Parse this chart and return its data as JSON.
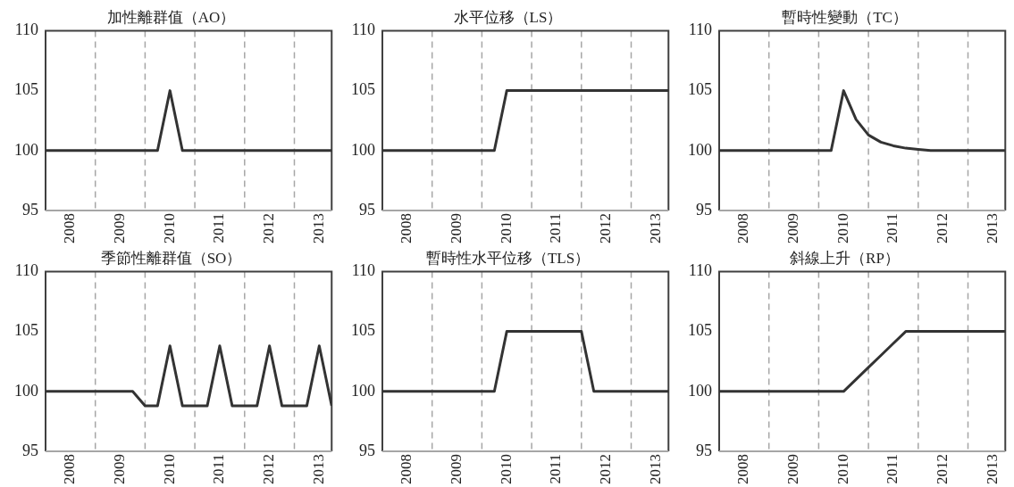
{
  "chart_data": [
    {
      "type": "line",
      "title": "加性離群值（AO）",
      "x": [
        2008,
        2008.25,
        2008.5,
        2008.75,
        2009,
        2009.25,
        2009.5,
        2009.75,
        2010,
        2010.25,
        2010.5,
        2010.75,
        2011,
        2011.25,
        2011.5,
        2011.75,
        2012,
        2012.25,
        2012.5,
        2012.75,
        2013,
        2013.25,
        2013.5,
        2013.75
      ],
      "xlim": [
        2008,
        2013.75
      ],
      "xticks": [
        {
          "value": 2008.5,
          "label": "2008"
        },
        {
          "value": 2009.5,
          "label": "2009"
        },
        {
          "value": 2010.5,
          "label": "2010"
        },
        {
          "value": 2011.5,
          "label": "2011"
        },
        {
          "value": 2012.5,
          "label": "2012"
        },
        {
          "value": 2013.5,
          "label": "2013"
        }
      ],
      "ylim": [
        95,
        110
      ],
      "yticks": [
        95,
        100,
        105,
        110
      ],
      "grid": false,
      "legend": false,
      "marker": "none",
      "line_style": "solid",
      "ref_lines": [
        {
          "axis": "x",
          "value": 2009,
          "color": "#a6a6a6",
          "line_style": "dashed"
        },
        {
          "axis": "x",
          "value": 2010,
          "color": "#a6a6a6",
          "line_style": "dashed"
        },
        {
          "axis": "x",
          "value": 2011,
          "color": "#a6a6a6",
          "line_style": "dashed"
        },
        {
          "axis": "x",
          "value": 2012,
          "color": "#a6a6a6",
          "line_style": "dashed"
        },
        {
          "axis": "x",
          "value": 2013,
          "color": "#a6a6a6",
          "line_style": "dashed"
        }
      ],
      "series": [
        {
          "color": "#333333",
          "values": [
            100,
            100,
            100,
            100,
            100,
            100,
            100,
            100,
            100,
            100,
            105,
            100,
            100,
            100,
            100,
            100,
            100,
            100,
            100,
            100,
            100,
            100,
            100,
            100
          ]
        }
      ]
    },
    {
      "type": "line",
      "title": "水平位移（LS）",
      "x": [
        2008,
        2008.25,
        2008.5,
        2008.75,
        2009,
        2009.25,
        2009.5,
        2009.75,
        2010,
        2010.25,
        2010.5,
        2010.75,
        2011,
        2011.25,
        2011.5,
        2011.75,
        2012,
        2012.25,
        2012.5,
        2012.75,
        2013,
        2013.25,
        2013.5,
        2013.75
      ],
      "xlim": [
        2008,
        2013.75
      ],
      "xticks": [
        {
          "value": 2008.5,
          "label": "2008"
        },
        {
          "value": 2009.5,
          "label": "2009"
        },
        {
          "value": 2010.5,
          "label": "2010"
        },
        {
          "value": 2011.5,
          "label": "2011"
        },
        {
          "value": 2012.5,
          "label": "2012"
        },
        {
          "value": 2013.5,
          "label": "2013"
        }
      ],
      "ylim": [
        95,
        110
      ],
      "yticks": [
        95,
        100,
        105,
        110
      ],
      "grid": false,
      "legend": false,
      "marker": "none",
      "line_style": "solid",
      "ref_lines": [
        {
          "axis": "x",
          "value": 2009,
          "color": "#a6a6a6",
          "line_style": "dashed"
        },
        {
          "axis": "x",
          "value": 2010,
          "color": "#a6a6a6",
          "line_style": "dashed"
        },
        {
          "axis": "x",
          "value": 2011,
          "color": "#a6a6a6",
          "line_style": "dashed"
        },
        {
          "axis": "x",
          "value": 2012,
          "color": "#a6a6a6",
          "line_style": "dashed"
        },
        {
          "axis": "x",
          "value": 2013,
          "color": "#a6a6a6",
          "line_style": "dashed"
        }
      ],
      "series": [
        {
          "color": "#333333",
          "values": [
            100,
            100,
            100,
            100,
            100,
            100,
            100,
            100,
            100,
            100,
            105,
            105,
            105,
            105,
            105,
            105,
            105,
            105,
            105,
            105,
            105,
            105,
            105,
            105
          ]
        }
      ]
    },
    {
      "type": "line",
      "title": "暫時性變動（TC）",
      "x": [
        2008,
        2008.25,
        2008.5,
        2008.75,
        2009,
        2009.25,
        2009.5,
        2009.75,
        2010,
        2010.25,
        2010.5,
        2010.75,
        2011,
        2011.25,
        2011.5,
        2011.75,
        2012,
        2012.25,
        2012.5,
        2012.75,
        2013,
        2013.25,
        2013.5,
        2013.75
      ],
      "xlim": [
        2008,
        2013.75
      ],
      "xticks": [
        {
          "value": 2008.5,
          "label": "2008"
        },
        {
          "value": 2009.5,
          "label": "2009"
        },
        {
          "value": 2010.5,
          "label": "2010"
        },
        {
          "value": 2011.5,
          "label": "2011"
        },
        {
          "value": 2012.5,
          "label": "2012"
        },
        {
          "value": 2013.5,
          "label": "2013"
        }
      ],
      "ylim": [
        95,
        110
      ],
      "yticks": [
        95,
        100,
        105,
        110
      ],
      "grid": false,
      "legend": false,
      "marker": "none",
      "line_style": "solid",
      "ref_lines": [
        {
          "axis": "x",
          "value": 2009,
          "color": "#a6a6a6",
          "line_style": "dashed"
        },
        {
          "axis": "x",
          "value": 2010,
          "color": "#a6a6a6",
          "line_style": "dashed"
        },
        {
          "axis": "x",
          "value": 2011,
          "color": "#a6a6a6",
          "line_style": "dashed"
        },
        {
          "axis": "x",
          "value": 2012,
          "color": "#a6a6a6",
          "line_style": "dashed"
        },
        {
          "axis": "x",
          "value": 2013,
          "color": "#a6a6a6",
          "line_style": "dashed"
        }
      ],
      "series": [
        {
          "color": "#333333",
          "values": [
            100,
            100,
            100,
            100,
            100,
            100,
            100,
            100,
            100,
            100,
            105,
            102.6,
            101.3,
            100.7,
            100.4,
            100.2,
            100.1,
            100,
            100,
            100,
            100,
            100,
            100,
            100
          ]
        }
      ]
    },
    {
      "type": "line",
      "title": "季節性離群值（SO）",
      "x": [
        2008,
        2008.25,
        2008.5,
        2008.75,
        2009,
        2009.25,
        2009.5,
        2009.75,
        2010,
        2010.25,
        2010.5,
        2010.75,
        2011,
        2011.25,
        2011.5,
        2011.75,
        2012,
        2012.25,
        2012.5,
        2012.75,
        2013,
        2013.25,
        2013.5,
        2013.75
      ],
      "xlim": [
        2008,
        2013.75
      ],
      "xticks": [
        {
          "value": 2008.5,
          "label": "2008"
        },
        {
          "value": 2009.5,
          "label": "2009"
        },
        {
          "value": 2010.5,
          "label": "2010"
        },
        {
          "value": 2011.5,
          "label": "2011"
        },
        {
          "value": 2012.5,
          "label": "2012"
        },
        {
          "value": 2013.5,
          "label": "2013"
        }
      ],
      "ylim": [
        95,
        110
      ],
      "yticks": [
        95,
        100,
        105,
        110
      ],
      "grid": false,
      "legend": false,
      "marker": "none",
      "line_style": "solid",
      "ref_lines": [
        {
          "axis": "x",
          "value": 2009,
          "color": "#a6a6a6",
          "line_style": "dashed"
        },
        {
          "axis": "x",
          "value": 2010,
          "color": "#a6a6a6",
          "line_style": "dashed"
        },
        {
          "axis": "x",
          "value": 2011,
          "color": "#a6a6a6",
          "line_style": "dashed"
        },
        {
          "axis": "x",
          "value": 2012,
          "color": "#a6a6a6",
          "line_style": "dashed"
        },
        {
          "axis": "x",
          "value": 2013,
          "color": "#a6a6a6",
          "line_style": "dashed"
        }
      ],
      "series": [
        {
          "color": "#333333",
          "values": [
            100,
            100,
            100,
            100,
            100,
            100,
            100,
            100,
            98.8,
            98.8,
            103.8,
            98.8,
            98.8,
            98.8,
            103.8,
            98.8,
            98.8,
            98.8,
            103.8,
            98.8,
            98.8,
            98.8,
            103.8,
            98.8
          ]
        }
      ]
    },
    {
      "type": "line",
      "title": "暫時性水平位移（TLS）",
      "x": [
        2008,
        2008.25,
        2008.5,
        2008.75,
        2009,
        2009.25,
        2009.5,
        2009.75,
        2010,
        2010.25,
        2010.5,
        2010.75,
        2011,
        2011.25,
        2011.5,
        2011.75,
        2012,
        2012.25,
        2012.5,
        2012.75,
        2013,
        2013.25,
        2013.5,
        2013.75
      ],
      "xlim": [
        2008,
        2013.75
      ],
      "xticks": [
        {
          "value": 2008.5,
          "label": "2008"
        },
        {
          "value": 2009.5,
          "label": "2009"
        },
        {
          "value": 2010.5,
          "label": "2010"
        },
        {
          "value": 2011.5,
          "label": "2011"
        },
        {
          "value": 2012.5,
          "label": "2012"
        },
        {
          "value": 2013.5,
          "label": "2013"
        }
      ],
      "ylim": [
        95,
        110
      ],
      "yticks": [
        95,
        100,
        105,
        110
      ],
      "grid": false,
      "legend": false,
      "marker": "none",
      "line_style": "solid",
      "ref_lines": [
        {
          "axis": "x",
          "value": 2009,
          "color": "#a6a6a6",
          "line_style": "dashed"
        },
        {
          "axis": "x",
          "value": 2010,
          "color": "#a6a6a6",
          "line_style": "dashed"
        },
        {
          "axis": "x",
          "value": 2011,
          "color": "#a6a6a6",
          "line_style": "dashed"
        },
        {
          "axis": "x",
          "value": 2012,
          "color": "#a6a6a6",
          "line_style": "dashed"
        },
        {
          "axis": "x",
          "value": 2013,
          "color": "#a6a6a6",
          "line_style": "dashed"
        }
      ],
      "series": [
        {
          "color": "#333333",
          "values": [
            100,
            100,
            100,
            100,
            100,
            100,
            100,
            100,
            100,
            100,
            105,
            105,
            105,
            105,
            105,
            105,
            105,
            100,
            100,
            100,
            100,
            100,
            100,
            100
          ]
        }
      ]
    },
    {
      "type": "line",
      "title": "斜線上升（RP）",
      "x": [
        2008,
        2008.25,
        2008.5,
        2008.75,
        2009,
        2009.25,
        2009.5,
        2009.75,
        2010,
        2010.25,
        2010.5,
        2010.75,
        2011,
        2011.25,
        2011.5,
        2011.75,
        2012,
        2012.25,
        2012.5,
        2012.75,
        2013,
        2013.25,
        2013.5,
        2013.75
      ],
      "xlim": [
        2008,
        2013.75
      ],
      "xticks": [
        {
          "value": 2008.5,
          "label": "2008"
        },
        {
          "value": 2009.5,
          "label": "2009"
        },
        {
          "value": 2010.5,
          "label": "2010"
        },
        {
          "value": 2011.5,
          "label": "2011"
        },
        {
          "value": 2012.5,
          "label": "2012"
        },
        {
          "value": 2013.5,
          "label": "2013"
        }
      ],
      "ylim": [
        95,
        110
      ],
      "yticks": [
        95,
        100,
        105,
        110
      ],
      "grid": false,
      "legend": false,
      "marker": "none",
      "line_style": "solid",
      "ref_lines": [
        {
          "axis": "x",
          "value": 2009,
          "color": "#a6a6a6",
          "line_style": "dashed"
        },
        {
          "axis": "x",
          "value": 2010,
          "color": "#a6a6a6",
          "line_style": "dashed"
        },
        {
          "axis": "x",
          "value": 2011,
          "color": "#a6a6a6",
          "line_style": "dashed"
        },
        {
          "axis": "x",
          "value": 2012,
          "color": "#a6a6a6",
          "line_style": "dashed"
        },
        {
          "axis": "x",
          "value": 2013,
          "color": "#a6a6a6",
          "line_style": "dashed"
        }
      ],
      "series": [
        {
          "color": "#333333",
          "values": [
            100,
            100,
            100,
            100,
            100,
            100,
            100,
            100,
            100,
            100,
            100,
            101,
            102,
            103,
            104,
            105,
            105,
            105,
            105,
            105,
            105,
            105,
            105,
            105
          ]
        }
      ]
    }
  ]
}
